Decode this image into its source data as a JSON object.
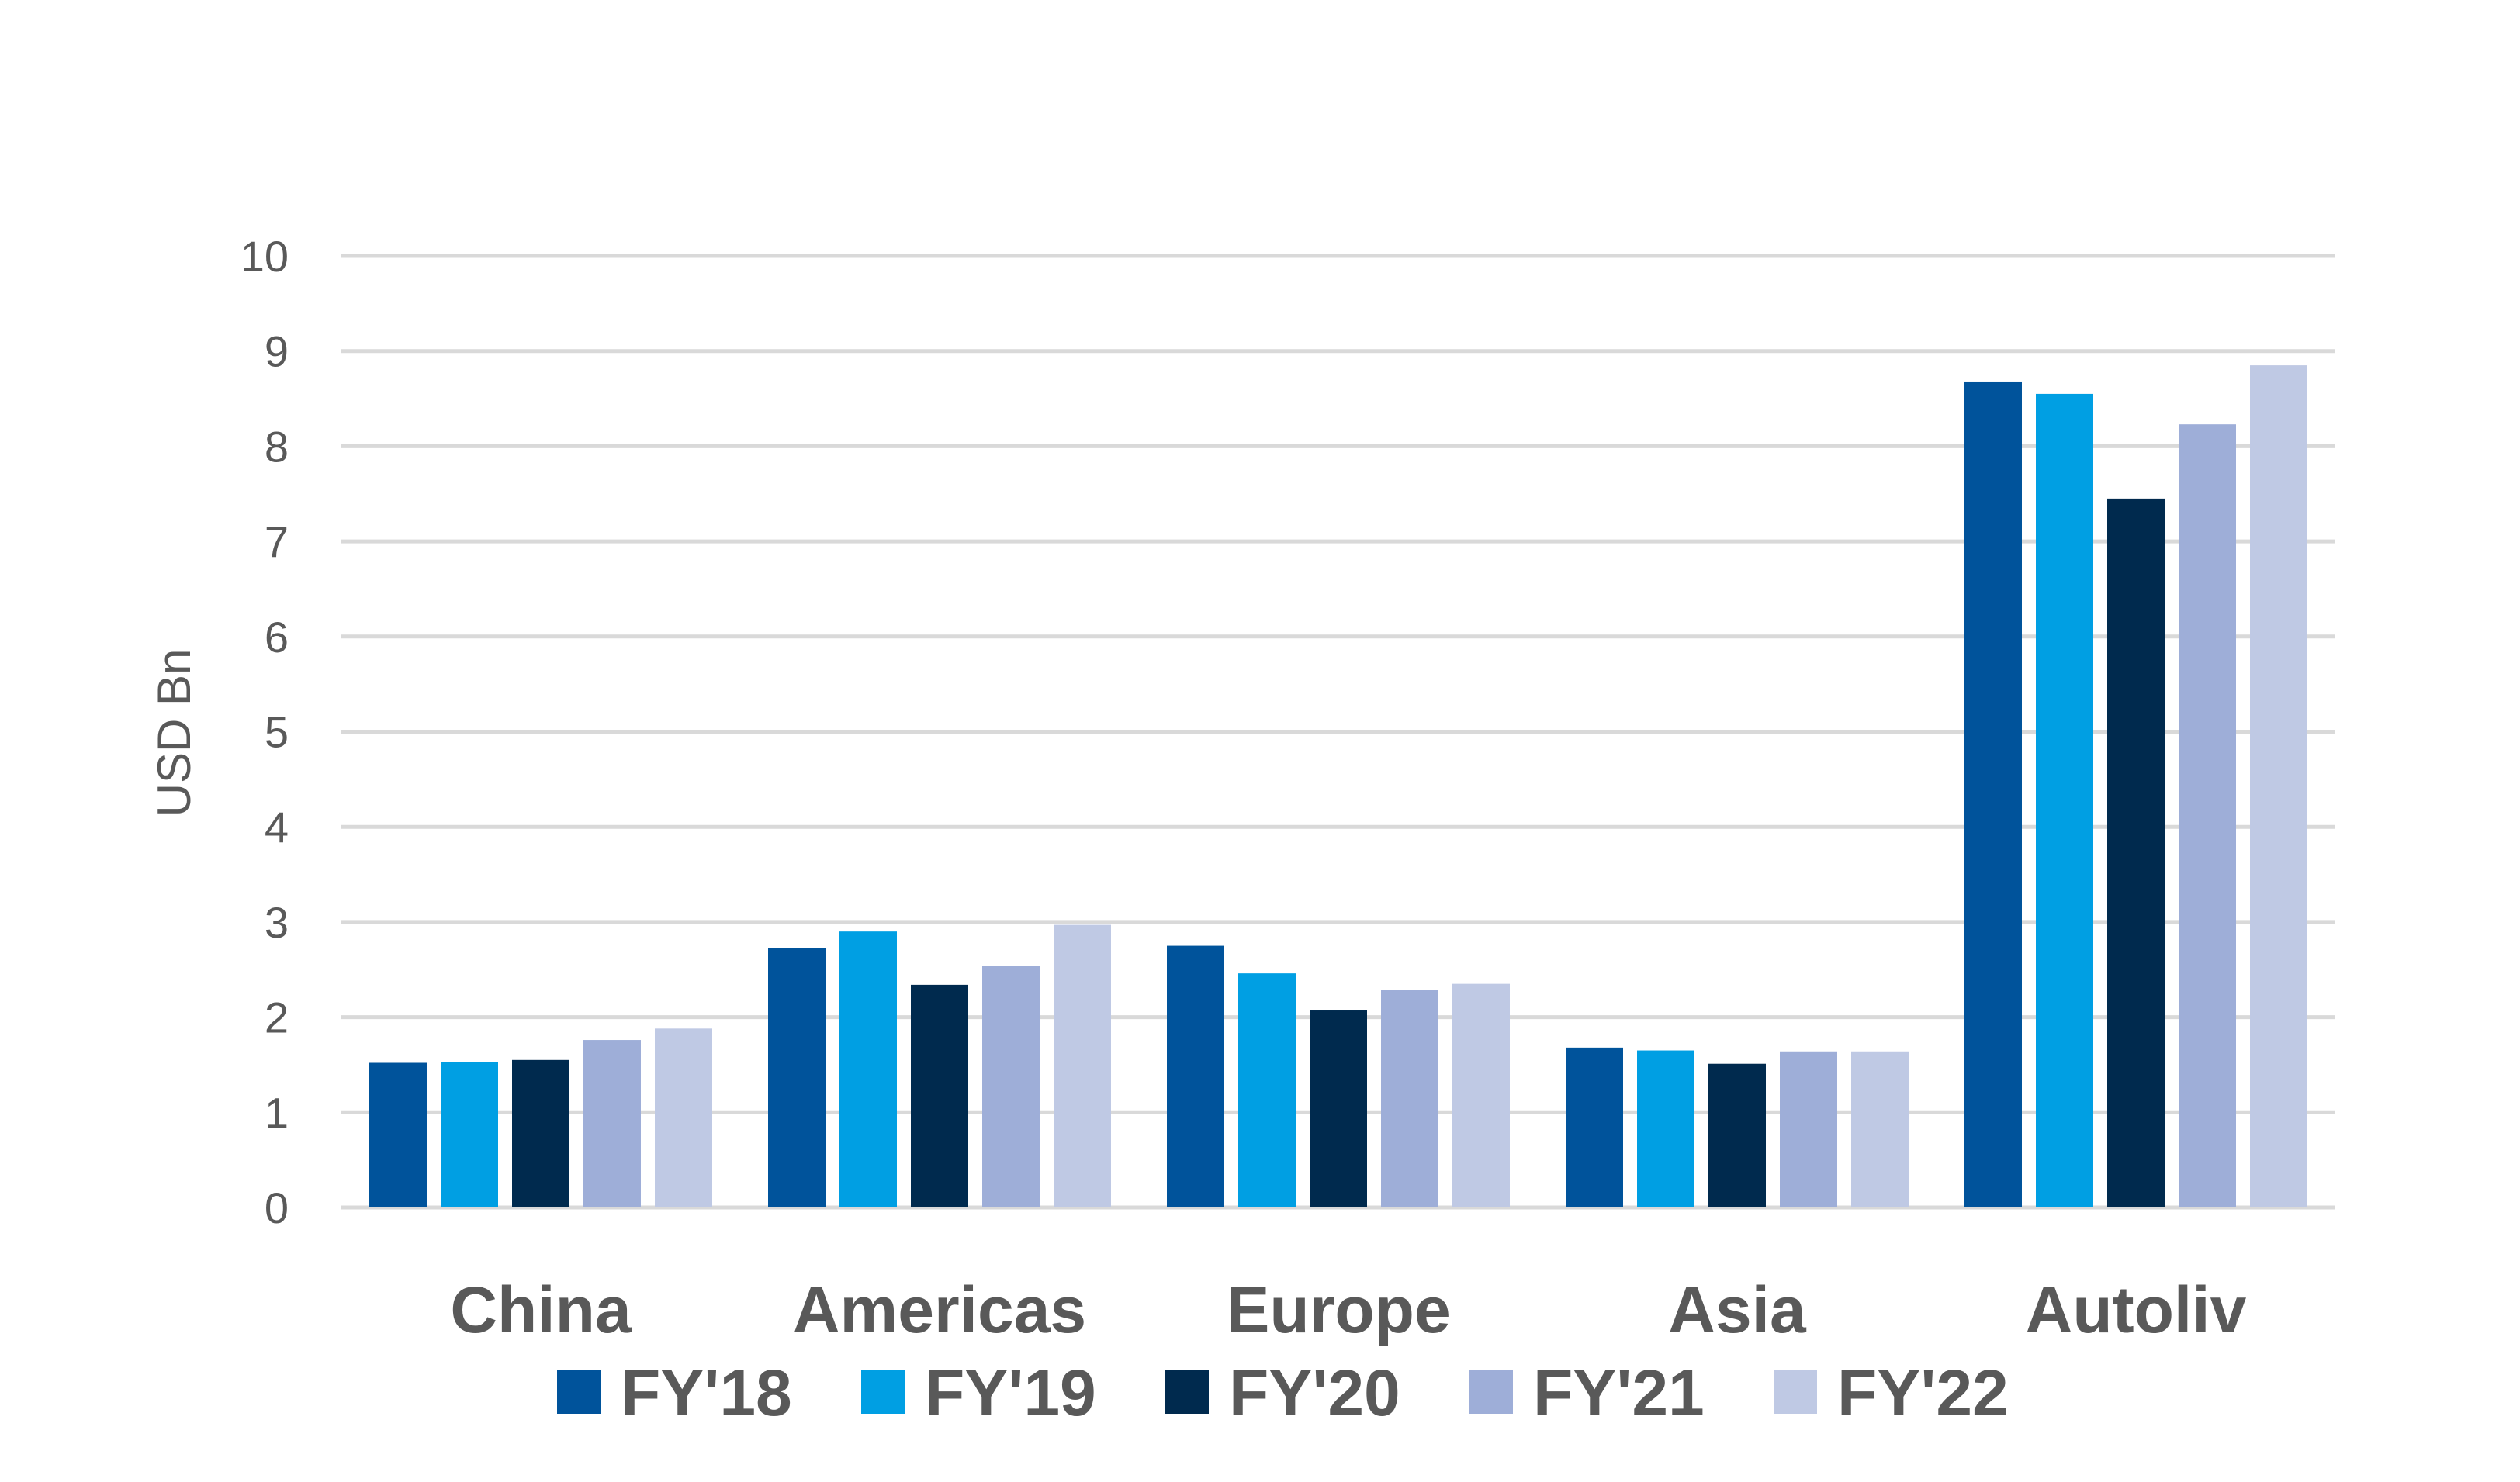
{
  "chart_data": {
    "type": "bar",
    "title": "",
    "xlabel": "",
    "ylabel": "USD Bn",
    "ylim": [
      0,
      10
    ],
    "yticks": [
      0,
      1,
      2,
      3,
      4,
      5,
      6,
      7,
      8,
      9,
      10
    ],
    "grid": true,
    "legend_position": "bottom",
    "categories": [
      "China",
      "Americas",
      "Europe",
      "Asia",
      "Autoliv"
    ],
    "series": [
      {
        "name": "FY'18",
        "color": "#00539B",
        "values": [
          1.52,
          2.73,
          2.75,
          1.68,
          8.68
        ]
      },
      {
        "name": "FY'19",
        "color": "#009FE3",
        "values": [
          1.53,
          2.9,
          2.46,
          1.65,
          8.55
        ]
      },
      {
        "name": "FY'20",
        "color": "#002A4E",
        "values": [
          1.55,
          2.34,
          2.07,
          1.51,
          7.45
        ]
      },
      {
        "name": "FY'21",
        "color": "#9EAED8",
        "values": [
          1.76,
          2.54,
          2.29,
          1.64,
          8.23
        ]
      },
      {
        "name": "FY'22",
        "color": "#BFC9E4",
        "values": [
          1.88,
          2.97,
          2.35,
          1.64,
          8.85
        ]
      }
    ]
  }
}
